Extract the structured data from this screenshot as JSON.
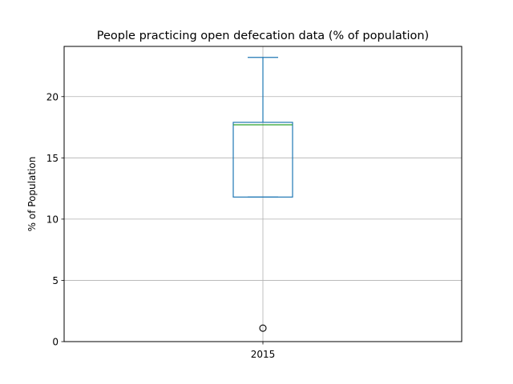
{
  "chart_data": {
    "type": "box",
    "title": "People practicing open defecation data (% of population)",
    "xlabel": "",
    "ylabel": "% of Population",
    "categories": [
      "2015"
    ],
    "ylim": [
      0,
      24.1
    ],
    "yticks": [
      0,
      5,
      10,
      15,
      20
    ],
    "grid": true,
    "boxes": [
      {
        "category": "2015",
        "whisker_low": 11.8,
        "q1": 11.8,
        "median": 17.7,
        "q3": 17.9,
        "whisker_high": 23.2,
        "outliers": [
          1.1
        ]
      }
    ],
    "colors": {
      "box": "#1f77b4",
      "median": "#2ca02c",
      "grid": "#b0b0b0",
      "outlier": "#000000"
    }
  }
}
